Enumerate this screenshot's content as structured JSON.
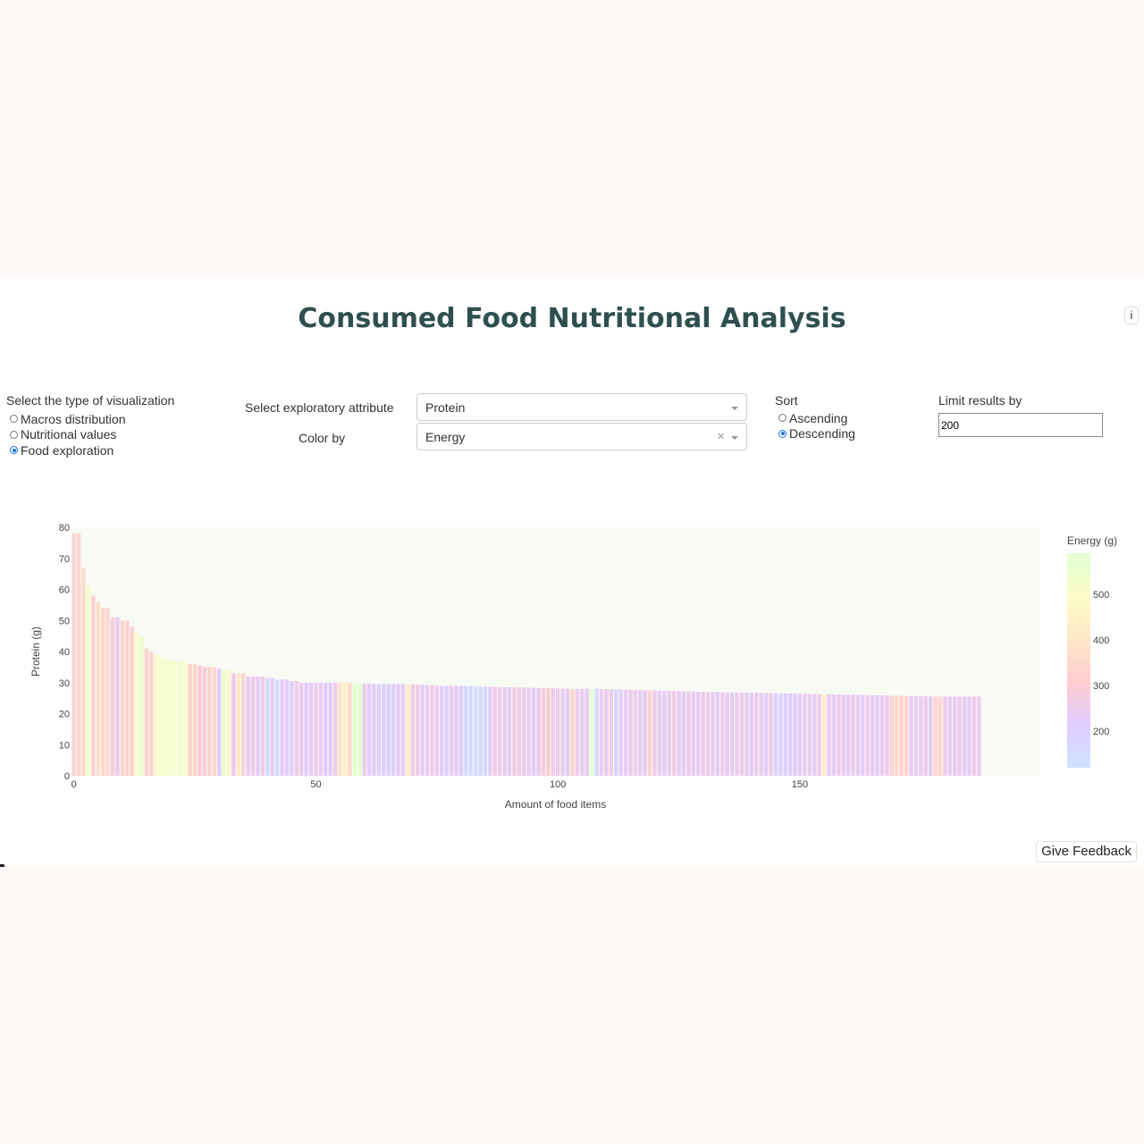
{
  "header": {
    "title": "Consumed Food Nutritional Analysis",
    "info_label": "i"
  },
  "visualization": {
    "label": "Select the type of visualization",
    "options": [
      "Macros distribution",
      "Nutritional values",
      "Food exploration"
    ],
    "selected": "Food exploration"
  },
  "attribute": {
    "label": "Select exploratory attribute",
    "value": "Protein"
  },
  "color_by": {
    "label": "Color by",
    "value": "Energy",
    "clear_label": "×"
  },
  "sort": {
    "label": "Sort",
    "options": [
      "Ascending",
      "Descending"
    ],
    "selected": "Descending"
  },
  "limit": {
    "label": "Limit results by",
    "value": "200"
  },
  "feedback": {
    "label": "Give Feedback"
  },
  "chart_data": {
    "type": "bar",
    "xlabel": "Amount of food items",
    "ylabel": "Protein (g)",
    "ylim": [
      0,
      80
    ],
    "yticks": [
      0,
      10,
      20,
      30,
      40,
      50,
      60,
      70,
      80
    ],
    "xlim": [
      -0.5,
      199.5
    ],
    "xticks": [
      0,
      50,
      100,
      150
    ],
    "grid": false,
    "colorbar": {
      "title": "Energy (g)",
      "ticks": [
        200,
        300,
        400,
        500
      ],
      "range": [
        120,
        590
      ],
      "colors": [
        "#cfe2ff",
        "#e0ccff",
        "#ffccd0",
        "#ffe8c8",
        "#fcfcc8",
        "#e2ffd2"
      ]
    },
    "bars": [
      {
        "y": 78,
        "e": 330
      },
      {
        "y": 78,
        "e": 330
      },
      {
        "y": 67,
        "e": 360
      },
      {
        "y": 61,
        "e": 540
      },
      {
        "y": 58,
        "e": 320
      },
      {
        "y": 56,
        "e": 370
      },
      {
        "y": 54,
        "e": 340
      },
      {
        "y": 54,
        "e": 350
      },
      {
        "y": 51,
        "e": 280
      },
      {
        "y": 51,
        "e": 250
      },
      {
        "y": 50,
        "e": 330
      },
      {
        "y": 50,
        "e": 320
      },
      {
        "y": 48,
        "e": 320
      },
      {
        "y": 46,
        "e": 500
      },
      {
        "y": 45,
        "e": 560
      },
      {
        "y": 41,
        "e": 330
      },
      {
        "y": 40,
        "e": 330
      },
      {
        "y": 39,
        "e": 470
      },
      {
        "y": 38,
        "e": 520
      },
      {
        "y": 38,
        "e": 520
      },
      {
        "y": 37,
        "e": 510
      },
      {
        "y": 37,
        "e": 520
      },
      {
        "y": 37,
        "e": 530
      },
      {
        "y": 37,
        "e": 510
      },
      {
        "y": 36,
        "e": 330
      },
      {
        "y": 36,
        "e": 330
      },
      {
        "y": 35.5,
        "e": 300
      },
      {
        "y": 35,
        "e": 290
      },
      {
        "y": 35,
        "e": 320
      },
      {
        "y": 35,
        "e": 350
      },
      {
        "y": 34.5,
        "e": 230
      },
      {
        "y": 34,
        "e": 560
      },
      {
        "y": 34,
        "e": 470
      },
      {
        "y": 33,
        "e": 250
      },
      {
        "y": 33,
        "e": 400
      },
      {
        "y": 33,
        "e": 330
      },
      {
        "y": 32,
        "e": 240
      },
      {
        "y": 32,
        "e": 250
      },
      {
        "y": 32,
        "e": 230
      },
      {
        "y": 32,
        "e": 260
      },
      {
        "y": 31.5,
        "e": 160
      },
      {
        "y": 31.5,
        "e": 240
      },
      {
        "y": 31,
        "e": 150
      },
      {
        "y": 31,
        "e": 220
      },
      {
        "y": 31,
        "e": 230
      },
      {
        "y": 30.5,
        "e": 200
      },
      {
        "y": 30.5,
        "e": 260
      },
      {
        "y": 30,
        "e": 240
      },
      {
        "y": 30,
        "e": 220
      },
      {
        "y": 30,
        "e": 230
      },
      {
        "y": 30,
        "e": 250
      },
      {
        "y": 30,
        "e": 240
      },
      {
        "y": 30,
        "e": 230
      },
      {
        "y": 30,
        "e": 220
      },
      {
        "y": 30,
        "e": 260
      },
      {
        "y": 30,
        "e": 380
      },
      {
        "y": 30,
        "e": 450
      },
      {
        "y": 29.8,
        "e": 350
      },
      {
        "y": 29.8,
        "e": 580
      },
      {
        "y": 29.8,
        "e": 590
      },
      {
        "y": 29.7,
        "e": 250
      },
      {
        "y": 29.7,
        "e": 220
      },
      {
        "y": 29.6,
        "e": 230
      },
      {
        "y": 29.6,
        "e": 190
      },
      {
        "y": 29.6,
        "e": 200
      },
      {
        "y": 29.5,
        "e": 210
      },
      {
        "y": 29.5,
        "e": 200
      },
      {
        "y": 29.5,
        "e": 230
      },
      {
        "y": 29.5,
        "e": 240
      },
      {
        "y": 29.5,
        "e": 420
      },
      {
        "y": 29.4,
        "e": 260
      },
      {
        "y": 29.4,
        "e": 270
      },
      {
        "y": 29.3,
        "e": 230
      },
      {
        "y": 29.2,
        "e": 250
      },
      {
        "y": 29.2,
        "e": 260
      },
      {
        "y": 29.1,
        "e": 240
      },
      {
        "y": 29,
        "e": 220
      },
      {
        "y": 29,
        "e": 200
      },
      {
        "y": 29,
        "e": 250
      },
      {
        "y": 29,
        "e": 230
      },
      {
        "y": 29,
        "e": 210
      },
      {
        "y": 28.9,
        "e": 160
      },
      {
        "y": 28.9,
        "e": 150
      },
      {
        "y": 28.8,
        "e": 150
      },
      {
        "y": 28.8,
        "e": 160
      },
      {
        "y": 28.7,
        "e": 170
      },
      {
        "y": 28.7,
        "e": 240
      },
      {
        "y": 28.6,
        "e": 260
      },
      {
        "y": 28.6,
        "e": 250
      },
      {
        "y": 28.5,
        "e": 240
      },
      {
        "y": 28.5,
        "e": 230
      },
      {
        "y": 28.5,
        "e": 270
      },
      {
        "y": 28.4,
        "e": 260
      },
      {
        "y": 28.4,
        "e": 250
      },
      {
        "y": 28.4,
        "e": 240
      },
      {
        "y": 28.3,
        "e": 230
      },
      {
        "y": 28.3,
        "e": 240
      },
      {
        "y": 28.2,
        "e": 280
      },
      {
        "y": 28.2,
        "e": 300
      },
      {
        "y": 28.2,
        "e": 260
      },
      {
        "y": 28.1,
        "e": 250
      },
      {
        "y": 28.1,
        "e": 240
      },
      {
        "y": 28,
        "e": 230
      },
      {
        "y": 28,
        "e": 330
      },
      {
        "y": 28,
        "e": 250
      },
      {
        "y": 28,
        "e": 240
      },
      {
        "y": 28,
        "e": 230
      },
      {
        "y": 28,
        "e": 580
      },
      {
        "y": 28,
        "e": 150
      },
      {
        "y": 27.9,
        "e": 240
      },
      {
        "y": 27.9,
        "e": 250
      },
      {
        "y": 27.9,
        "e": 260
      },
      {
        "y": 27.8,
        "e": 170
      },
      {
        "y": 27.8,
        "e": 230
      },
      {
        "y": 27.7,
        "e": 240
      },
      {
        "y": 27.7,
        "e": 250
      },
      {
        "y": 27.6,
        "e": 260
      },
      {
        "y": 27.6,
        "e": 240
      },
      {
        "y": 27.5,
        "e": 230
      },
      {
        "y": 27.5,
        "e": 330
      },
      {
        "y": 27.5,
        "e": 250
      },
      {
        "y": 27.5,
        "e": 240
      },
      {
        "y": 27.4,
        "e": 230
      },
      {
        "y": 27.4,
        "e": 250
      },
      {
        "y": 27.3,
        "e": 260
      },
      {
        "y": 27.3,
        "e": 240
      },
      {
        "y": 27.2,
        "e": 230
      },
      {
        "y": 27.2,
        "e": 250
      },
      {
        "y": 27.1,
        "e": 240
      },
      {
        "y": 27.1,
        "e": 230
      },
      {
        "y": 27,
        "e": 250
      },
      {
        "y": 27,
        "e": 260
      },
      {
        "y": 27,
        "e": 240
      },
      {
        "y": 27,
        "e": 230
      },
      {
        "y": 26.9,
        "e": 250
      },
      {
        "y": 26.9,
        "e": 240
      },
      {
        "y": 26.9,
        "e": 230
      },
      {
        "y": 26.8,
        "e": 250
      },
      {
        "y": 26.8,
        "e": 260
      },
      {
        "y": 26.8,
        "e": 240
      },
      {
        "y": 26.7,
        "e": 230
      },
      {
        "y": 26.7,
        "e": 250
      },
      {
        "y": 26.7,
        "e": 240
      },
      {
        "y": 26.6,
        "e": 230
      },
      {
        "y": 26.6,
        "e": 250
      },
      {
        "y": 26.6,
        "e": 200
      },
      {
        "y": 26.5,
        "e": 190
      },
      {
        "y": 26.5,
        "e": 200
      },
      {
        "y": 26.5,
        "e": 210
      },
      {
        "y": 26.5,
        "e": 220
      },
      {
        "y": 26.4,
        "e": 230
      },
      {
        "y": 26.4,
        "e": 250
      },
      {
        "y": 26.4,
        "e": 240
      },
      {
        "y": 26.3,
        "e": 230
      },
      {
        "y": 26.3,
        "e": 250
      },
      {
        "y": 26.3,
        "e": 420
      },
      {
        "y": 26.2,
        "e": 240
      },
      {
        "y": 26.2,
        "e": 230
      },
      {
        "y": 26.2,
        "e": 250
      },
      {
        "y": 26.1,
        "e": 240
      },
      {
        "y": 26.1,
        "e": 230
      },
      {
        "y": 26.1,
        "e": 250
      },
      {
        "y": 26,
        "e": 240
      },
      {
        "y": 26,
        "e": 230
      },
      {
        "y": 26,
        "e": 250
      },
      {
        "y": 26,
        "e": 240
      },
      {
        "y": 25.9,
        "e": 230
      },
      {
        "y": 25.9,
        "e": 250
      },
      {
        "y": 25.9,
        "e": 240
      },
      {
        "y": 25.8,
        "e": 330
      },
      {
        "y": 25.8,
        "e": 340
      },
      {
        "y": 25.8,
        "e": 330
      },
      {
        "y": 25.7,
        "e": 320
      },
      {
        "y": 25.7,
        "e": 240
      },
      {
        "y": 25.7,
        "e": 230
      },
      {
        "y": 25.6,
        "e": 250
      },
      {
        "y": 25.6,
        "e": 240
      },
      {
        "y": 25.6,
        "e": 230
      },
      {
        "y": 25.5,
        "e": 330
      },
      {
        "y": 25.5,
        "e": 340
      },
      {
        "y": 25.5,
        "e": 250
      },
      {
        "y": 25.5,
        "e": 240
      },
      {
        "y": 25.5,
        "e": 230
      },
      {
        "y": 25.5,
        "e": 250
      },
      {
        "y": 25.5,
        "e": 240
      },
      {
        "y": 25.5,
        "e": 230
      },
      {
        "y": 25.5,
        "e": 250
      },
      {
        "y": 25.5,
        "e": 240
      }
    ]
  }
}
